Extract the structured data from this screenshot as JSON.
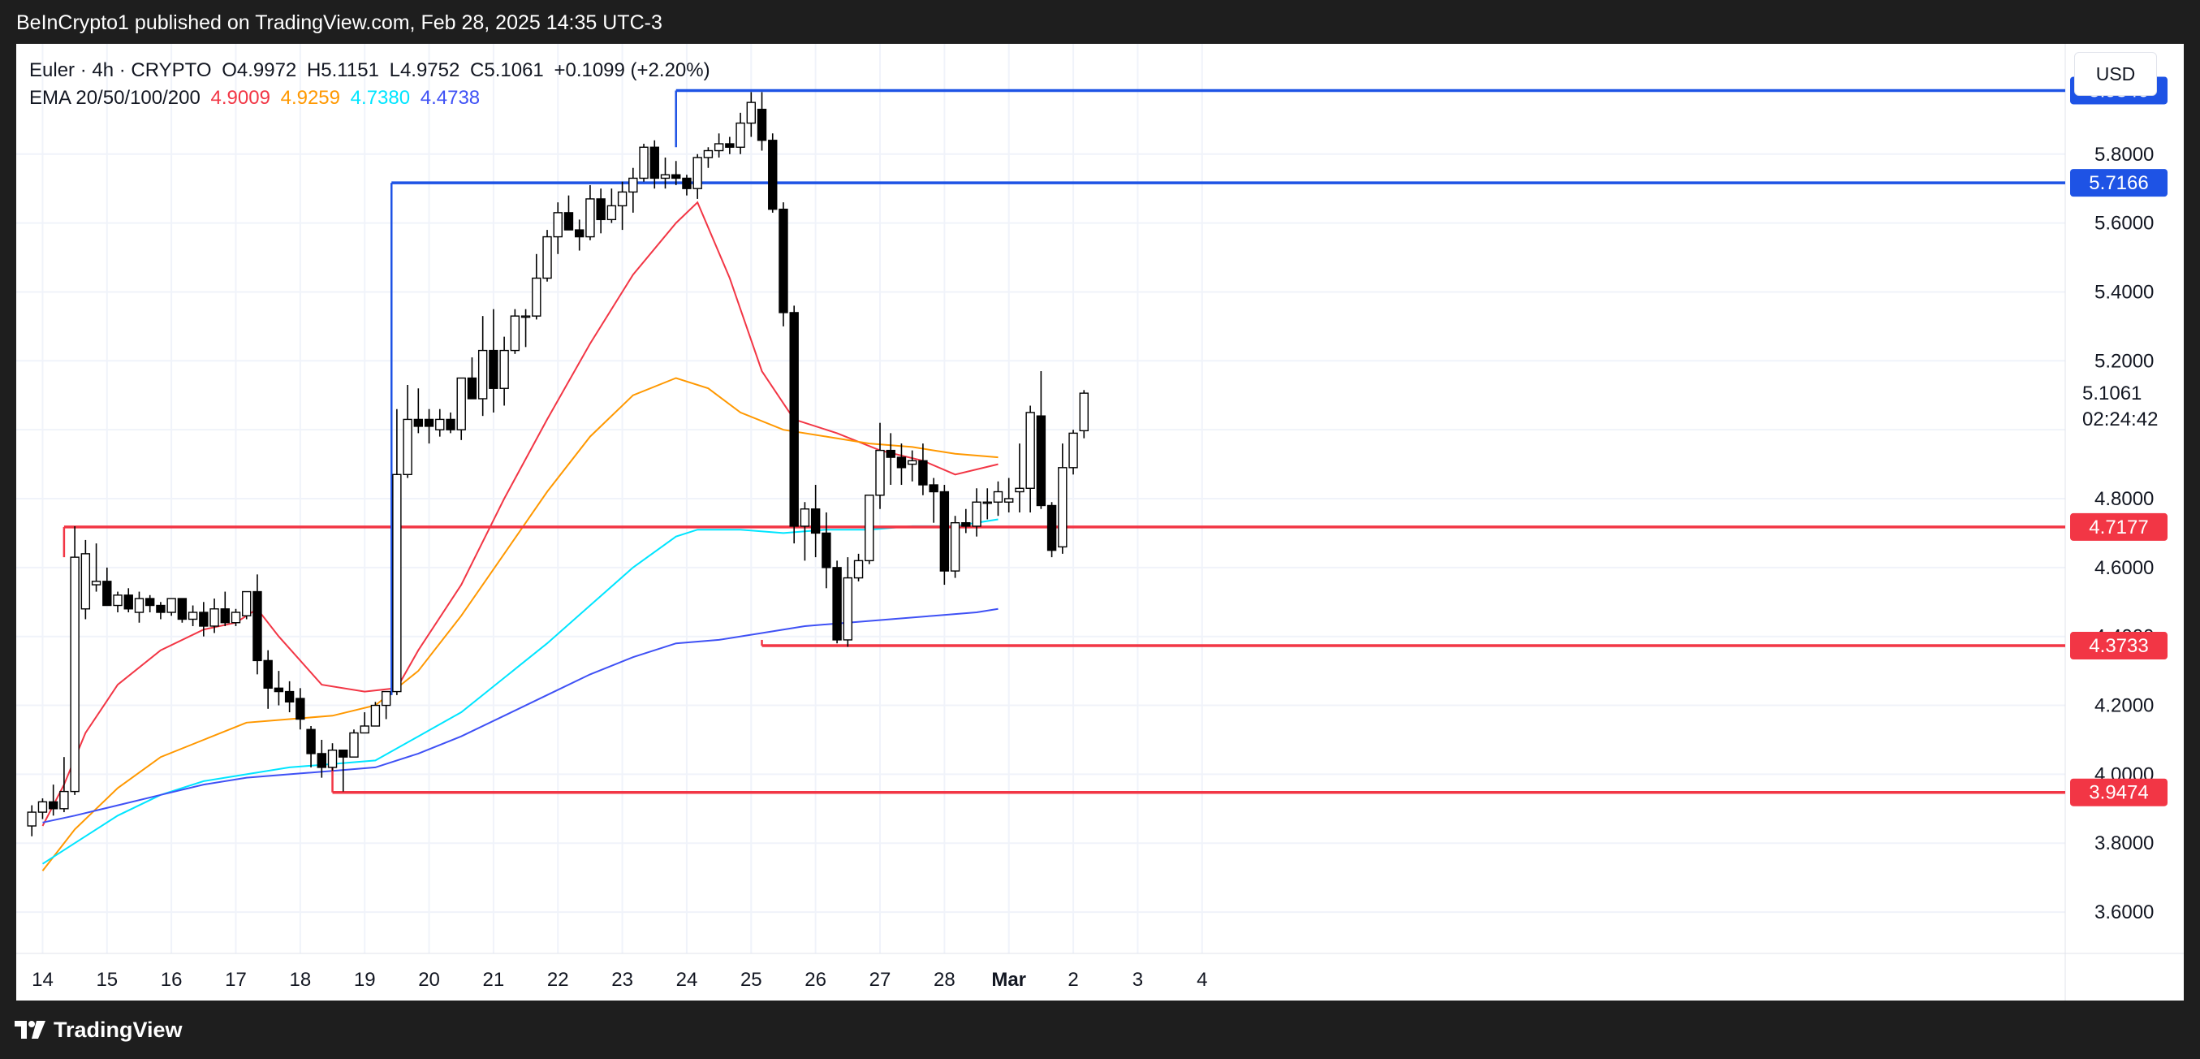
{
  "header": {
    "published_by": "BeInCrypto1 published on TradingView.com, Feb 28, 2025 14:35 UTC-3"
  },
  "legend": {
    "symbol": "Euler · 4h · CRYPTO",
    "open": "O4.9972",
    "high": "H5.1151",
    "low": "L4.9752",
    "close": "C5.1061",
    "change": "+0.1099 (+2.20%)",
    "ema_label": "EMA 20/50/100/200",
    "ema20": "4.9009",
    "ema50": "4.9259",
    "ema100": "4.7380",
    "ema200": "4.4738"
  },
  "currency_button": "USD",
  "countdown": "02:24:42",
  "footer": {
    "brand": "TradingView"
  },
  "colors": {
    "bull": "#ffffff",
    "bear": "#000000",
    "wick": "#000000",
    "ema20": "#f23645",
    "ema50": "#ff9800",
    "ema100": "#00e5ff",
    "ema200": "#3f51f5",
    "resistance": "#1e53e5",
    "support": "#f23645"
  },
  "chart_data": {
    "type": "candlestick",
    "timeframe": "4h",
    "y_range": [
      3.48,
      6.12
    ],
    "y_ticks": [
      3.6,
      3.8,
      4.0,
      4.2,
      4.4,
      4.6,
      4.8,
      5.0,
      5.2,
      5.4,
      5.6,
      5.8
    ],
    "y_tick_labels": [
      "3.6000",
      "3.8000",
      "4.0000",
      "4.2000",
      "4.4000",
      "4.6000",
      "4.8000",
      "5.0000",
      "5.2000",
      "5.4000",
      "5.6000",
      "5.8000"
    ],
    "x_ticks": [
      {
        "bar": 1,
        "label": "14"
      },
      {
        "bar": 7,
        "label": "15"
      },
      {
        "bar": 13,
        "label": "16"
      },
      {
        "bar": 19,
        "label": "17"
      },
      {
        "bar": 25,
        "label": "18"
      },
      {
        "bar": 31,
        "label": "19"
      },
      {
        "bar": 37,
        "label": "20"
      },
      {
        "bar": 43,
        "label": "21"
      },
      {
        "bar": 49,
        "label": "22"
      },
      {
        "bar": 55,
        "label": "23"
      },
      {
        "bar": 61,
        "label": "24"
      },
      {
        "bar": 67,
        "label": "25"
      },
      {
        "bar": 73,
        "label": "26"
      },
      {
        "bar": 79,
        "label": "27"
      },
      {
        "bar": 85,
        "label": "28"
      },
      {
        "bar": 91,
        "label": "Mar"
      },
      {
        "bar": 97,
        "label": "2"
      },
      {
        "bar": 103,
        "label": "3"
      },
      {
        "bar": 109,
        "label": "4"
      }
    ],
    "bar_range": [
      0,
      116
    ],
    "candles": [
      [
        3.85,
        3.91,
        3.82,
        3.89
      ],
      [
        3.89,
        3.93,
        3.87,
        3.92
      ],
      [
        3.92,
        3.97,
        3.88,
        3.9
      ],
      [
        3.9,
        4.05,
        3.89,
        3.95
      ],
      [
        3.95,
        4.72,
        3.94,
        4.63
      ],
      [
        4.48,
        4.68,
        4.45,
        4.64
      ],
      [
        4.55,
        4.67,
        4.53,
        4.56
      ],
      [
        4.56,
        4.6,
        4.5,
        4.49
      ],
      [
        4.49,
        4.53,
        4.47,
        4.52
      ],
      [
        4.52,
        4.54,
        4.47,
        4.48
      ],
      [
        4.47,
        4.53,
        4.44,
        4.51
      ],
      [
        4.51,
        4.52,
        4.47,
        4.49
      ],
      [
        4.49,
        4.5,
        4.45,
        4.47
      ],
      [
        4.47,
        4.5,
        4.46,
        4.51
      ],
      [
        4.51,
        4.51,
        4.44,
        4.45
      ],
      [
        4.45,
        4.49,
        4.43,
        4.47
      ],
      [
        4.47,
        4.5,
        4.4,
        4.43
      ],
      [
        4.43,
        4.51,
        4.41,
        4.48
      ],
      [
        4.48,
        4.53,
        4.43,
        4.44
      ],
      [
        4.44,
        4.48,
        4.43,
        4.47
      ],
      [
        4.46,
        4.53,
        4.45,
        4.53
      ],
      [
        4.53,
        4.58,
        4.29,
        4.33
      ],
      [
        4.33,
        4.36,
        4.19,
        4.25
      ],
      [
        4.25,
        4.3,
        4.2,
        4.24
      ],
      [
        4.24,
        4.27,
        4.18,
        4.21
      ],
      [
        4.22,
        4.25,
        4.13,
        4.16
      ],
      [
        4.13,
        4.14,
        4.02,
        4.06
      ],
      [
        4.06,
        4.1,
        3.99,
        4.02
      ],
      [
        4.02,
        4.09,
        4.01,
        4.07
      ],
      [
        4.07,
        4.07,
        3.95,
        4.05
      ],
      [
        4.05,
        4.13,
        4.05,
        4.12
      ],
      [
        4.12,
        4.18,
        4.13,
        4.14
      ],
      [
        4.14,
        4.21,
        4.14,
        4.2
      ],
      [
        4.2,
        4.24,
        4.16,
        4.24
      ],
      [
        4.24,
        5.06,
        4.23,
        4.87
      ],
      [
        4.87,
        5.13,
        4.86,
        5.03
      ],
      [
        5.03,
        5.12,
        4.99,
        5.01
      ],
      [
        5.03,
        5.06,
        4.96,
        5.01
      ],
      [
        5.0,
        5.06,
        4.98,
        5.03
      ],
      [
        5.03,
        5.05,
        4.99,
        5.0
      ],
      [
        5.0,
        5.15,
        4.97,
        5.15
      ],
      [
        5.15,
        5.21,
        5.09,
        5.09
      ],
      [
        5.09,
        5.33,
        5.04,
        5.23
      ],
      [
        5.23,
        5.35,
        5.05,
        5.12
      ],
      [
        5.12,
        5.27,
        5.07,
        5.23
      ],
      [
        5.23,
        5.35,
        5.22,
        5.33
      ],
      [
        5.33,
        5.35,
        5.24,
        5.33
      ],
      [
        5.33,
        5.51,
        5.32,
        5.44
      ],
      [
        5.44,
        5.58,
        5.43,
        5.56
      ],
      [
        5.56,
        5.66,
        5.51,
        5.63
      ],
      [
        5.63,
        5.68,
        5.59,
        5.58
      ],
      [
        5.58,
        5.61,
        5.52,
        5.56
      ],
      [
        5.56,
        5.71,
        5.55,
        5.67
      ],
      [
        5.67,
        5.7,
        5.57,
        5.61
      ],
      [
        5.61,
        5.7,
        5.6,
        5.65
      ],
      [
        5.65,
        5.72,
        5.58,
        5.69
      ],
      [
        5.69,
        5.76,
        5.63,
        5.73
      ],
      [
        5.73,
        5.83,
        5.72,
        5.82
      ],
      [
        5.82,
        5.84,
        5.7,
        5.73
      ],
      [
        5.73,
        5.79,
        5.7,
        5.74
      ],
      [
        5.74,
        5.78,
        5.71,
        5.73
      ],
      [
        5.73,
        5.74,
        5.68,
        5.7
      ],
      [
        5.7,
        5.8,
        5.67,
        5.79
      ],
      [
        5.79,
        5.82,
        5.76,
        5.81
      ],
      [
        5.81,
        5.86,
        5.79,
        5.83
      ],
      [
        5.83,
        5.85,
        5.8,
        5.82
      ],
      [
        5.82,
        5.92,
        5.8,
        5.89
      ],
      [
        5.89,
        5.98,
        5.85,
        5.95
      ],
      [
        5.93,
        5.98,
        5.81,
        5.84
      ],
      [
        5.84,
        5.86,
        5.63,
        5.64
      ],
      [
        5.64,
        5.66,
        5.3,
        5.34
      ],
      [
        5.34,
        5.36,
        4.67,
        4.72
      ],
      [
        4.72,
        4.79,
        4.62,
        4.77
      ],
      [
        4.77,
        4.84,
        4.63,
        4.7
      ],
      [
        4.7,
        4.76,
        4.54,
        4.6
      ],
      [
        4.6,
        4.62,
        4.38,
        4.39
      ],
      [
        4.39,
        4.63,
        4.37,
        4.57
      ],
      [
        4.57,
        4.64,
        4.56,
        4.62
      ],
      [
        4.62,
        4.8,
        4.61,
        4.81
      ],
      [
        4.81,
        5.02,
        4.77,
        4.94
      ],
      [
        4.94,
        4.99,
        4.84,
        4.92
      ],
      [
        4.92,
        4.96,
        4.84,
        4.89
      ],
      [
        4.9,
        4.94,
        4.85,
        4.91
      ],
      [
        4.91,
        4.96,
        4.81,
        4.84
      ],
      [
        4.84,
        4.86,
        4.73,
        4.82
      ],
      [
        4.82,
        4.84,
        4.55,
        4.59
      ],
      [
        4.59,
        4.75,
        4.57,
        4.73
      ],
      [
        4.73,
        4.77,
        4.7,
        4.72
      ],
      [
        4.72,
        4.83,
        4.69,
        4.79
      ],
      [
        4.79,
        4.83,
        4.74,
        4.79
      ],
      [
        4.79,
        4.85,
        4.75,
        4.82
      ],
      [
        4.79,
        4.86,
        4.76,
        4.8
      ],
      [
        4.82,
        4.96,
        4.76,
        4.83
      ],
      [
        4.83,
        5.07,
        4.76,
        5.05
      ],
      [
        5.04,
        5.17,
        4.77,
        4.78
      ],
      [
        4.78,
        4.79,
        4.63,
        4.65
      ],
      [
        4.66,
        4.96,
        4.64,
        4.89
      ],
      [
        4.89,
        5.0,
        4.87,
        4.99
      ],
      [
        4.9972,
        5.1151,
        4.9752,
        5.1061
      ]
    ],
    "ema": [
      {
        "name": "EMA 20",
        "color": "#f23645",
        "points": [
          [
            1,
            3.85
          ],
          [
            3,
            3.97
          ],
          [
            5,
            4.12
          ],
          [
            8,
            4.26
          ],
          [
            12,
            4.36
          ],
          [
            16,
            4.42
          ],
          [
            19,
            4.44
          ],
          [
            21,
            4.48
          ],
          [
            23,
            4.4
          ],
          [
            27,
            4.26
          ],
          [
            31,
            4.24
          ],
          [
            34,
            4.25
          ],
          [
            36,
            4.36
          ],
          [
            40,
            4.55
          ],
          [
            44,
            4.8
          ],
          [
            48,
            5.03
          ],
          [
            52,
            5.25
          ],
          [
            56,
            5.45
          ],
          [
            60,
            5.6
          ],
          [
            62,
            5.66
          ],
          [
            65,
            5.44
          ],
          [
            68,
            5.17
          ],
          [
            71,
            5.03
          ],
          [
            75,
            4.99
          ],
          [
            79,
            4.94
          ],
          [
            83,
            4.91
          ],
          [
            86,
            4.87
          ],
          [
            90,
            4.9
          ]
        ]
      },
      {
        "name": "EMA 50",
        "color": "#ff9800",
        "points": [
          [
            1,
            3.72
          ],
          [
            4,
            3.84
          ],
          [
            8,
            3.96
          ],
          [
            12,
            4.05
          ],
          [
            16,
            4.1
          ],
          [
            20,
            4.15
          ],
          [
            24,
            4.16
          ],
          [
            28,
            4.17
          ],
          [
            32,
            4.2
          ],
          [
            36,
            4.3
          ],
          [
            40,
            4.46
          ],
          [
            44,
            4.64
          ],
          [
            48,
            4.82
          ],
          [
            52,
            4.98
          ],
          [
            56,
            5.1
          ],
          [
            60,
            5.15
          ],
          [
            63,
            5.12
          ],
          [
            66,
            5.05
          ],
          [
            70,
            5.0
          ],
          [
            74,
            4.98
          ],
          [
            78,
            4.96
          ],
          [
            82,
            4.95
          ],
          [
            86,
            4.93
          ],
          [
            90,
            4.92
          ]
        ]
      },
      {
        "name": "EMA 100",
        "color": "#00e5ff",
        "points": [
          [
            1,
            3.74
          ],
          [
            4,
            3.8
          ],
          [
            8,
            3.88
          ],
          [
            12,
            3.94
          ],
          [
            16,
            3.98
          ],
          [
            20,
            4.0
          ],
          [
            24,
            4.02
          ],
          [
            28,
            4.03
          ],
          [
            32,
            4.04
          ],
          [
            36,
            4.11
          ],
          [
            40,
            4.18
          ],
          [
            44,
            4.28
          ],
          [
            48,
            4.38
          ],
          [
            52,
            4.49
          ],
          [
            56,
            4.6
          ],
          [
            60,
            4.69
          ],
          [
            62,
            4.71
          ],
          [
            66,
            4.71
          ],
          [
            70,
            4.7
          ],
          [
            74,
            4.71
          ],
          [
            78,
            4.71
          ],
          [
            82,
            4.72
          ],
          [
            86,
            4.72
          ],
          [
            90,
            4.74
          ]
        ]
      },
      {
        "name": "EMA 200",
        "color": "#3f51f5",
        "points": [
          [
            1,
            3.86
          ],
          [
            4,
            3.88
          ],
          [
            8,
            3.91
          ],
          [
            12,
            3.94
          ],
          [
            16,
            3.97
          ],
          [
            20,
            3.99
          ],
          [
            24,
            4.0
          ],
          [
            28,
            4.01
          ],
          [
            32,
            4.02
          ],
          [
            36,
            4.06
          ],
          [
            40,
            4.11
          ],
          [
            44,
            4.17
          ],
          [
            48,
            4.23
          ],
          [
            52,
            4.29
          ],
          [
            56,
            4.34
          ],
          [
            60,
            4.38
          ],
          [
            64,
            4.39
          ],
          [
            68,
            4.41
          ],
          [
            72,
            4.43
          ],
          [
            76,
            4.44
          ],
          [
            80,
            4.45
          ],
          [
            84,
            4.46
          ],
          [
            88,
            4.47
          ],
          [
            90,
            4.48
          ]
        ]
      }
    ],
    "levels": [
      {
        "value": 5.9846,
        "label": "5.9846",
        "from_bar": 60,
        "color": "#1e53e5"
      },
      {
        "value": 5.7166,
        "label": "5.7166",
        "from_bar": 33.5,
        "color": "#1e53e5"
      },
      {
        "value": 4.7177,
        "label": "4.7177",
        "from_bar": 3,
        "color": "#f23645"
      },
      {
        "value": 4.3733,
        "label": "4.3733",
        "from_bar": 68,
        "color": "#f23645"
      },
      {
        "value": 3.9474,
        "label": "3.9474",
        "from_bar": 28,
        "color": "#f23645"
      }
    ],
    "last_price": {
      "value": 5.1061,
      "label": "5.1061"
    }
  }
}
